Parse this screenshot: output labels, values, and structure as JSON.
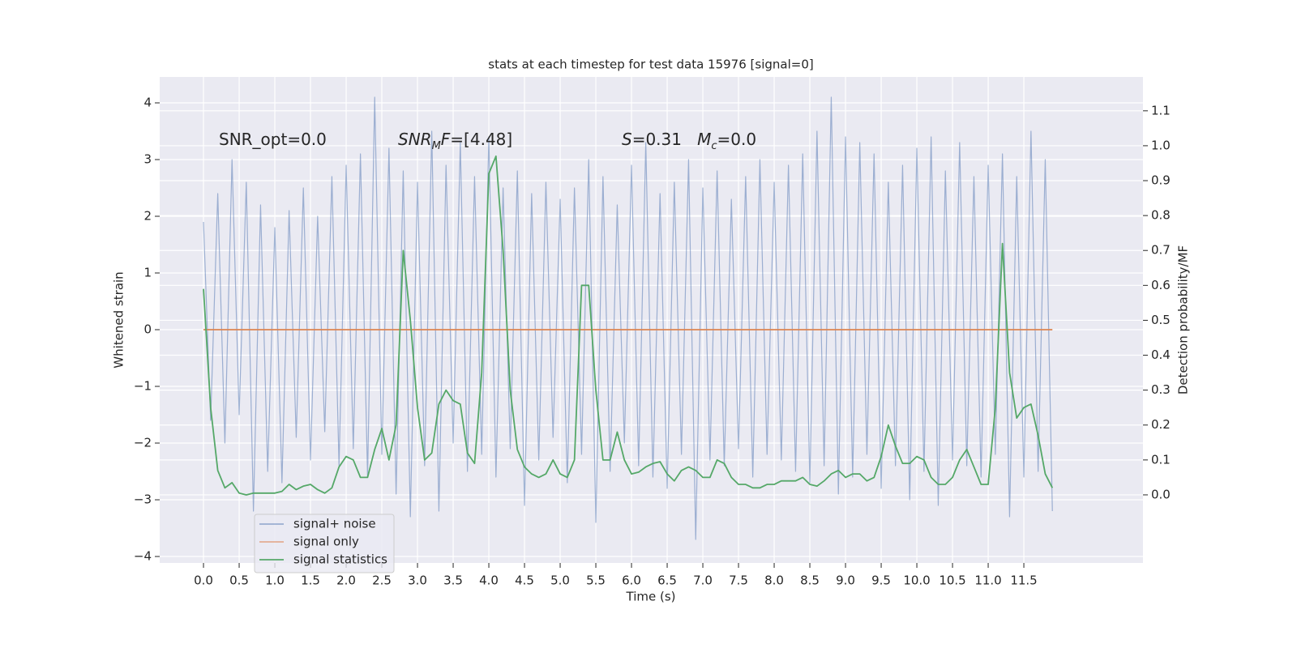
{
  "chart_data": {
    "type": "line",
    "title": "stats at each timestep for test data 15976 [signal=0]",
    "xlabel": "Time (s)",
    "ylabel": "Whitened strain",
    "y2label": "Detection probability/MF",
    "annotations": [
      [
        {
          "text": "SNR_opt=0.0",
          "style": "normal"
        }
      ],
      [
        {
          "text": "SNR",
          "style": "italic"
        },
        {
          "text": "M",
          "style": "sub"
        },
        {
          "text": "F",
          "style": "italic"
        },
        {
          "text": "=[4.48]",
          "style": "normal"
        }
      ],
      [
        {
          "text": "S",
          "style": "italic"
        },
        {
          "text": "=0.31   ",
          "style": "normal"
        },
        {
          "text": "M",
          "style": "italic"
        },
        {
          "text": "c",
          "style": "sub"
        },
        {
          "text": "=0.0",
          "style": "normal"
        }
      ]
    ],
    "x": [
      0,
      0.1,
      0.2,
      0.3,
      0.4,
      0.5,
      0.6,
      0.7,
      0.8,
      0.9,
      1,
      1.1,
      1.2,
      1.3,
      1.4,
      1.5,
      1.6,
      1.7,
      1.8,
      1.9,
      2,
      2.1,
      2.2,
      2.3,
      2.4,
      2.5,
      2.6,
      2.7,
      2.8,
      2.9,
      3,
      3.1,
      3.2,
      3.3,
      3.4,
      3.5,
      3.6,
      3.7,
      3.8,
      3.9,
      4,
      4.1,
      4.2,
      4.3,
      4.4,
      4.5,
      4.6,
      4.7,
      4.8,
      4.9,
      5,
      5.1,
      5.2,
      5.3,
      5.4,
      5.5,
      5.6,
      5.7,
      5.8,
      5.9,
      6,
      6.1,
      6.2,
      6.3,
      6.4,
      6.5,
      6.6,
      6.7,
      6.8,
      6.9,
      7,
      7.1,
      7.2,
      7.3,
      7.4,
      7.5,
      7.6,
      7.7,
      7.8,
      7.9,
      8,
      8.1,
      8.2,
      8.3,
      8.4,
      8.5,
      8.6,
      8.7,
      8.8,
      8.9,
      9,
      9.1,
      9.2,
      9.3,
      9.4,
      9.5,
      9.6,
      9.7,
      9.8,
      9.9,
      10,
      10.1,
      10.2,
      10.3,
      10.4,
      10.5,
      10.6,
      10.7,
      10.8,
      10.9,
      11,
      11.1,
      11.2,
      11.3,
      11.4,
      11.5,
      11.6,
      11.7,
      11.8,
      11.9
    ],
    "series": [
      {
        "name": "signal+ noise",
        "color": "#4c72b0",
        "values": [
          1.9,
          -1.6,
          2.4,
          -2.0,
          3.0,
          -1.5,
          2.6,
          -3.2,
          2.2,
          -2.5,
          1.8,
          -2.7,
          2.1,
          -1.9,
          2.5,
          -2.3,
          2.0,
          -1.8,
          2.7,
          -2.4,
          2.9,
          -2.1,
          3.1,
          -2.6,
          4.1,
          -2.2,
          3.2,
          -2.9,
          2.8,
          -3.3,
          2.6,
          -2.4,
          3.5,
          -3.2,
          2.9,
          -2.0,
          3.3,
          -2.5,
          2.7,
          -2.2,
          3.4,
          -2.6,
          2.5,
          -2.1,
          2.8,
          -3.1,
          2.4,
          -2.3,
          2.6,
          -1.9,
          2.3,
          -2.7,
          2.5,
          -2.2,
          3.0,
          -3.4,
          2.7,
          -2.5,
          2.2,
          -2.0,
          2.9,
          -2.4,
          3.3,
          -2.6,
          2.4,
          -2.8,
          2.6,
          -2.2,
          3.0,
          -3.7,
          2.5,
          -2.3,
          2.8,
          -2.4,
          2.3,
          -2.1,
          2.7,
          -2.6,
          3.0,
          -2.2,
          2.6,
          -2.3,
          2.9,
          -2.5,
          3.1,
          -2.7,
          3.5,
          -2.4,
          4.1,
          -2.9,
          3.4,
          -2.6,
          3.3,
          -2.2,
          3.1,
          -2.8,
          2.6,
          -2.4,
          2.9,
          -3.0,
          3.2,
          -2.5,
          3.4,
          -3.1,
          2.8,
          -2.3,
          3.3,
          -2.4,
          2.7,
          -2.6,
          2.9,
          -2.2,
          3.1,
          -3.3,
          2.7,
          -2.6,
          3.5,
          -2.5,
          3.0,
          -3.2
        ]
      },
      {
        "name": "signal only",
        "color": "#dd8452",
        "values": [
          0,
          0,
          0,
          0,
          0,
          0,
          0,
          0,
          0,
          0,
          0,
          0,
          0,
          0,
          0,
          0,
          0,
          0,
          0,
          0,
          0,
          0,
          0,
          0,
          0,
          0,
          0,
          0,
          0,
          0,
          0,
          0,
          0,
          0,
          0,
          0,
          0,
          0,
          0,
          0,
          0,
          0,
          0,
          0,
          0,
          0,
          0,
          0,
          0,
          0,
          0,
          0,
          0,
          0,
          0,
          0,
          0,
          0,
          0,
          0,
          0,
          0,
          0,
          0,
          0,
          0,
          0,
          0,
          0,
          0,
          0,
          0,
          0,
          0,
          0,
          0,
          0,
          0,
          0,
          0,
          0,
          0,
          0,
          0,
          0,
          0,
          0,
          0,
          0,
          0,
          0,
          0,
          0,
          0,
          0,
          0,
          0,
          0,
          0,
          0,
          0,
          0,
          0,
          0,
          0,
          0,
          0,
          0,
          0,
          0,
          0,
          0,
          0,
          0,
          0,
          0,
          0,
          0,
          0,
          0
        ]
      },
      {
        "name": "signal statistics",
        "color": "#55a868",
        "axis": "y2",
        "values": [
          0.59,
          0.25,
          0.07,
          0.02,
          0.035,
          0.005,
          0.0,
          0.005,
          0.005,
          0.005,
          0.005,
          0.01,
          0.03,
          0.015,
          0.025,
          0.03,
          0.015,
          0.005,
          0.02,
          0.08,
          0.11,
          0.1,
          0.05,
          0.05,
          0.13,
          0.19,
          0.1,
          0.2,
          0.7,
          0.5,
          0.25,
          0.1,
          0.12,
          0.26,
          0.3,
          0.27,
          0.26,
          0.12,
          0.09,
          0.35,
          0.92,
          0.97,
          0.7,
          0.3,
          0.13,
          0.08,
          0.06,
          0.05,
          0.06,
          0.1,
          0.06,
          0.05,
          0.1,
          0.6,
          0.6,
          0.3,
          0.1,
          0.1,
          0.18,
          0.1,
          0.06,
          0.065,
          0.08,
          0.09,
          0.095,
          0.06,
          0.04,
          0.07,
          0.08,
          0.07,
          0.05,
          0.05,
          0.1,
          0.09,
          0.05,
          0.03,
          0.03,
          0.02,
          0.02,
          0.03,
          0.03,
          0.04,
          0.04,
          0.04,
          0.05,
          0.03,
          0.025,
          0.04,
          0.06,
          0.07,
          0.05,
          0.06,
          0.06,
          0.04,
          0.05,
          0.11,
          0.2,
          0.14,
          0.09,
          0.09,
          0.11,
          0.1,
          0.05,
          0.03,
          0.03,
          0.05,
          0.1,
          0.13,
          0.08,
          0.03,
          0.03,
          0.25,
          0.72,
          0.35,
          0.22,
          0.25,
          0.26,
          0.17,
          0.06,
          0.02
        ]
      }
    ],
    "xlim": [
      -0.614,
      13.17
    ],
    "xticks": [
      {
        "value": 0,
        "label": "0.0"
      },
      0.5,
      {
        "value": 1,
        "label": "1.0"
      },
      1.5,
      {
        "value": 2,
        "label": "2.0"
      },
      2.5,
      {
        "value": 3,
        "label": "3.0"
      },
      3.5,
      {
        "value": 4,
        "label": "4.0"
      },
      4.5,
      {
        "value": 5,
        "label": "5.0"
      },
      5.5,
      {
        "value": 6,
        "label": "6.0"
      },
      6.5,
      {
        "value": 7,
        "label": "7.0"
      },
      7.5,
      {
        "value": 8,
        "label": "8.0"
      },
      8.5,
      {
        "value": 9,
        "label": "9.0"
      },
      9.5,
      {
        "value": 10,
        "label": "10.0"
      },
      10.5,
      {
        "value": 11,
        "label": "11.0"
      },
      11.5
    ],
    "ylim": [
      -4.114,
      4.457
    ],
    "yticks": [
      {
        "value": -4,
        "label": "−4"
      },
      {
        "value": -3,
        "label": "−3"
      },
      {
        "value": -2,
        "label": "−2"
      },
      {
        "value": -1,
        "label": "−1"
      },
      0,
      1,
      2,
      3,
      4
    ],
    "y2lim": [
      -0.195,
      1.197
    ],
    "y2ticks": [
      {
        "value": 0,
        "label": "0.0"
      },
      0.1,
      0.2,
      0.3,
      0.4,
      0.5,
      0.6,
      0.7,
      0.8,
      0.9,
      {
        "value": 1,
        "label": "1.0"
      },
      1.1
    ],
    "grid": true,
    "legend": "lower left"
  }
}
